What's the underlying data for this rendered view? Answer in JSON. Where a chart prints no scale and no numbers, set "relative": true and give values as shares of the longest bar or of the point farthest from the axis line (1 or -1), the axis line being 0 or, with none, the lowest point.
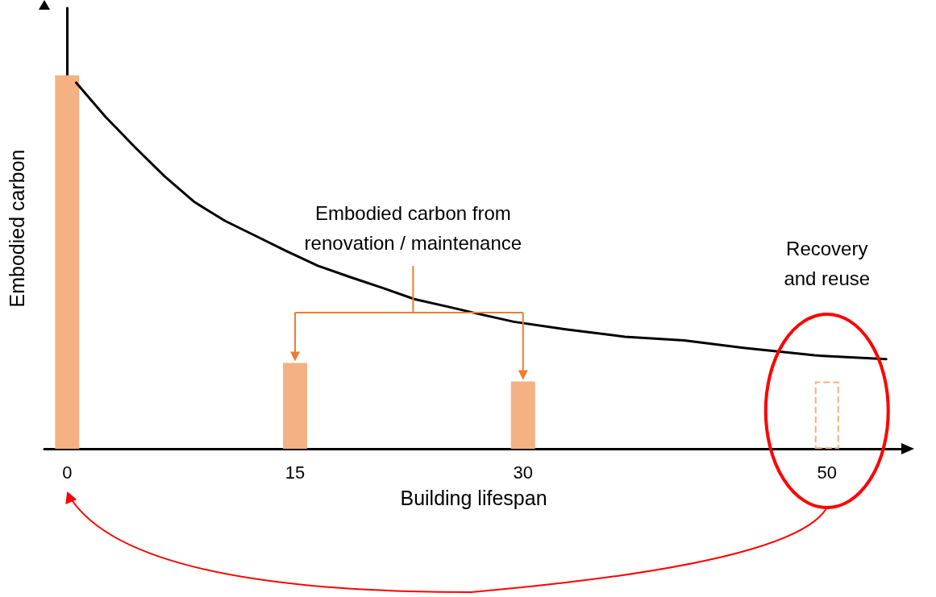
{
  "chart_data": {
    "type": "bar",
    "xlabel": "Building lifespan",
    "ylabel": "Embodied carbon",
    "relative": true,
    "xlim": [
      -1.5,
      55
    ],
    "xticks": [
      0,
      15,
      30,
      50
    ],
    "series": [
      {
        "color": "#f4b183",
        "x": [
          0,
          15,
          30
        ],
        "values": [
          1,
          0.23,
          0.18
        ]
      },
      {
        "color": "#f4b183",
        "line_style": "dashed",
        "x": [
          50
        ],
        "values": [
          0.18
        ]
      },
      {
        "type": "line",
        "color": "#000000",
        "marker": "none",
        "x": [
          0.6,
          2.5,
          4.4,
          6.4,
          8.4,
          10.4,
          12.4,
          14.4,
          16.5,
          18.6,
          20.8,
          22.9,
          25.1,
          27.2,
          29.4,
          32.8,
          36.7,
          40.6,
          44.5,
          49.2,
          53.9
        ],
        "values": [
          0.98,
          0.89,
          0.81,
          0.73,
          0.66,
          0.61,
          0.57,
          0.53,
          0.49,
          0.46,
          0.43,
          0.4,
          0.38,
          0.36,
          0.34,
          0.32,
          0.3,
          0.29,
          0.27,
          0.25,
          0.24
        ]
      }
    ],
    "annotations": [
      "Embodied carbon from renovation / maintenance",
      "Recovery and reuse"
    ]
  }
}
